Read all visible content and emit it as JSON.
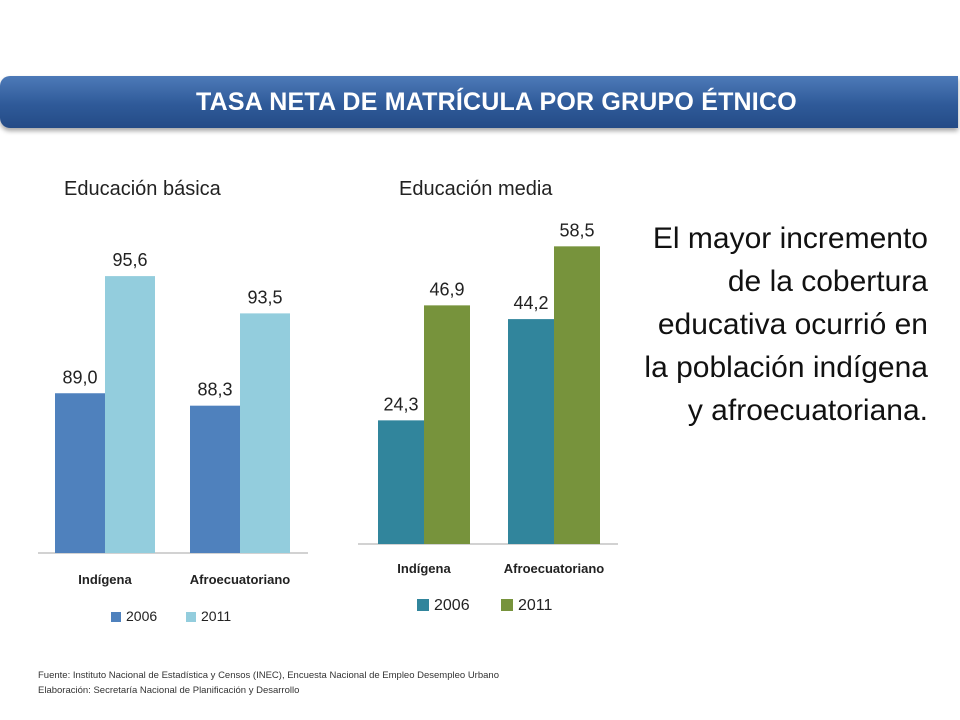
{
  "header": {
    "title": "TASA NETA DE MATRÍCULA POR GRUPO ÉTNICO"
  },
  "note": "El mayor incremento de la cobertura educativa ocurrió en la población indígena y afroecuatoriana.",
  "footer": {
    "source": "Fuente: Instituto Nacional de Estadística y Censos (INEC), Encuesta Nacional de Empleo Desempleo Urbano",
    "elaboration": "Elaboración: Secretaría Nacional de Planificación y Desarrollo"
  },
  "chart_data": [
    {
      "type": "bar",
      "title": "Educación básica",
      "categories": [
        "Indígena",
        "Afroecuatoriano"
      ],
      "series": [
        {
          "name": "2006",
          "values": [
            89.0,
            88.3
          ],
          "labels": [
            "89,0",
            "88,3"
          ],
          "color": "#4f81bd"
        },
        {
          "name": "2011",
          "values": [
            95.6,
            93.5
          ],
          "labels": [
            "95,6",
            "93,5"
          ],
          "color": "#93cddd"
        }
      ],
      "ylim": [
        80,
        100
      ],
      "grid": false,
      "legend": "bottom"
    },
    {
      "type": "bar",
      "title": "Educación media",
      "categories": [
        "Indígena",
        "Afroecuatoriano"
      ],
      "series": [
        {
          "name": "2006",
          "values": [
            24.3,
            44.2
          ],
          "labels": [
            "24,3",
            "44,2"
          ],
          "color": "#31859c"
        },
        {
          "name": "2011",
          "values": [
            46.9,
            58.5
          ],
          "labels": [
            "46,9",
            "58,5"
          ],
          "color": "#77933c"
        }
      ],
      "ylim": [
        0,
        68
      ],
      "grid": false,
      "legend": "bottom"
    }
  ]
}
